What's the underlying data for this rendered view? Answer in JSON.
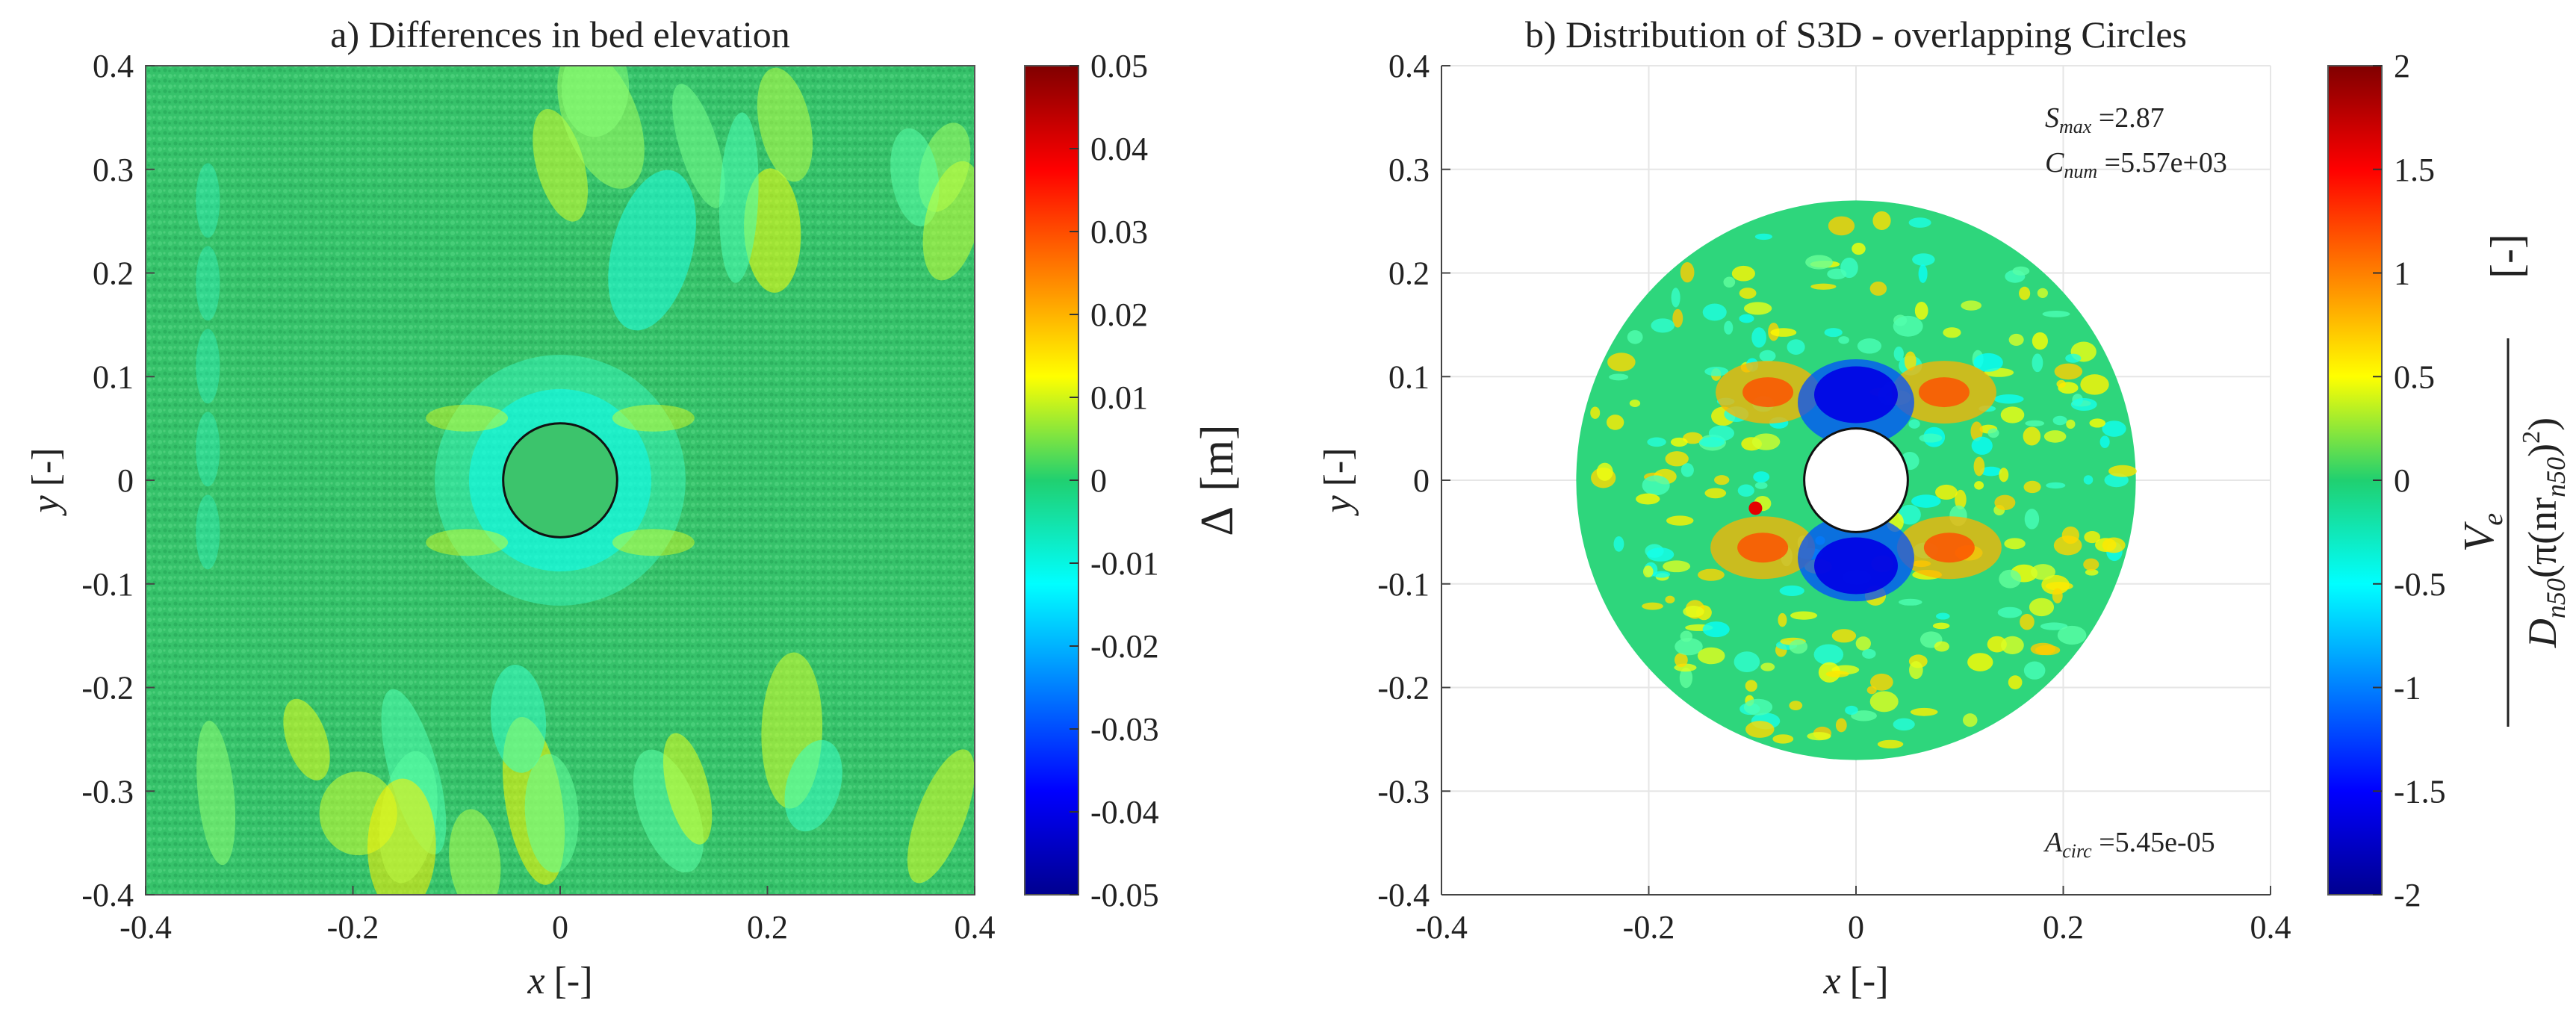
{
  "chart_data": [
    {
      "type": "heatmap",
      "panel": "a",
      "title": "a) Differences in bed elevation",
      "xlabel_var": "x",
      "xlabel_unit": "[-]",
      "ylabel_var": "y",
      "ylabel_unit": "[-]",
      "xlim": [
        -0.4,
        0.4
      ],
      "ylim": [
        -0.4,
        0.4
      ],
      "xticks": [
        -0.4,
        -0.2,
        0,
        0.2,
        0.4
      ],
      "xtick_labels": [
        "-0.4",
        "-0.2",
        "0",
        "0.2",
        "0.4"
      ],
      "yticks": [
        0.4,
        0.3,
        0.2,
        0.1,
        0,
        -0.1,
        -0.2,
        -0.3,
        -0.4
      ],
      "ytick_labels": [
        "0.4",
        "0.3",
        "0.2",
        "0.1",
        "0",
        "-0.1",
        "-0.2",
        "-0.3",
        "-0.4"
      ],
      "colorbar": {
        "label_symbol": "Δ",
        "label_unit": "[m]",
        "range": [
          -0.05,
          0.05
        ],
        "ticks": [
          0.05,
          0.04,
          0.03,
          0.02,
          0.01,
          0,
          -0.01,
          -0.02,
          -0.03,
          -0.04,
          -0.05
        ],
        "tick_labels": [
          "0.05",
          "0.04",
          "0.03",
          "0.02",
          "0.01",
          "0",
          "-0.01",
          "-0.02",
          "-0.03",
          "-0.04",
          "-0.05"
        ],
        "colormap": "jet"
      },
      "pile_radius": 0.055,
      "grid": false
    },
    {
      "type": "heatmap",
      "panel": "b",
      "title": "b) Distribution of S3D - overlapping Circles",
      "xlabel_var": "x",
      "xlabel_unit": "[-]",
      "ylabel_var": "y",
      "ylabel_unit": "[-]",
      "xlim": [
        -0.4,
        0.4
      ],
      "ylim": [
        -0.4,
        0.4
      ],
      "xticks": [
        -0.4,
        -0.2,
        0,
        0.2,
        0.4
      ],
      "xtick_labels": [
        "-0.4",
        "-0.2",
        "0",
        "0.2",
        "0.4"
      ],
      "yticks": [
        0.4,
        0.3,
        0.2,
        0.1,
        0,
        -0.1,
        -0.2,
        -0.3,
        -0.4
      ],
      "ytick_labels": [
        "0.4",
        "0.3",
        "0.2",
        "0.1",
        "0",
        "-0.1",
        "-0.2",
        "-0.3",
        "-0.4"
      ],
      "annotations": [
        {
          "symbol": "S",
          "sub": "max",
          "value": " =2.87"
        },
        {
          "symbol": "C",
          "sub": "num",
          "value": " =5.57e+03"
        },
        {
          "symbol": "A",
          "sub": "circ",
          "value": " =5.45e-05"
        }
      ],
      "colorbar": {
        "label_numerator": "V",
        "label_numerator_sub": "e",
        "label_denominator": "D",
        "label_denominator_sub": "n50",
        "label_denominator_rest": "(π(nr",
        "label_denominator_rest_sub": "n50",
        "label_denominator_tail": ")",
        "label_denominator_sup": "2",
        "label_denominator_close": ")",
        "label_unit": "[-]",
        "range": [
          -2,
          2
        ],
        "ticks": [
          2,
          1.5,
          1,
          0.5,
          0,
          -0.5,
          -1,
          -1.5,
          -2
        ],
        "tick_labels": [
          "2",
          "1.5",
          "1",
          "0.5",
          "0",
          "-0.5",
          "-1",
          "-1.5",
          "-2"
        ],
        "colormap": "jet"
      },
      "domain_outer_radius": 0.27,
      "domain_inner_radius": 0.05,
      "grid": true
    }
  ]
}
